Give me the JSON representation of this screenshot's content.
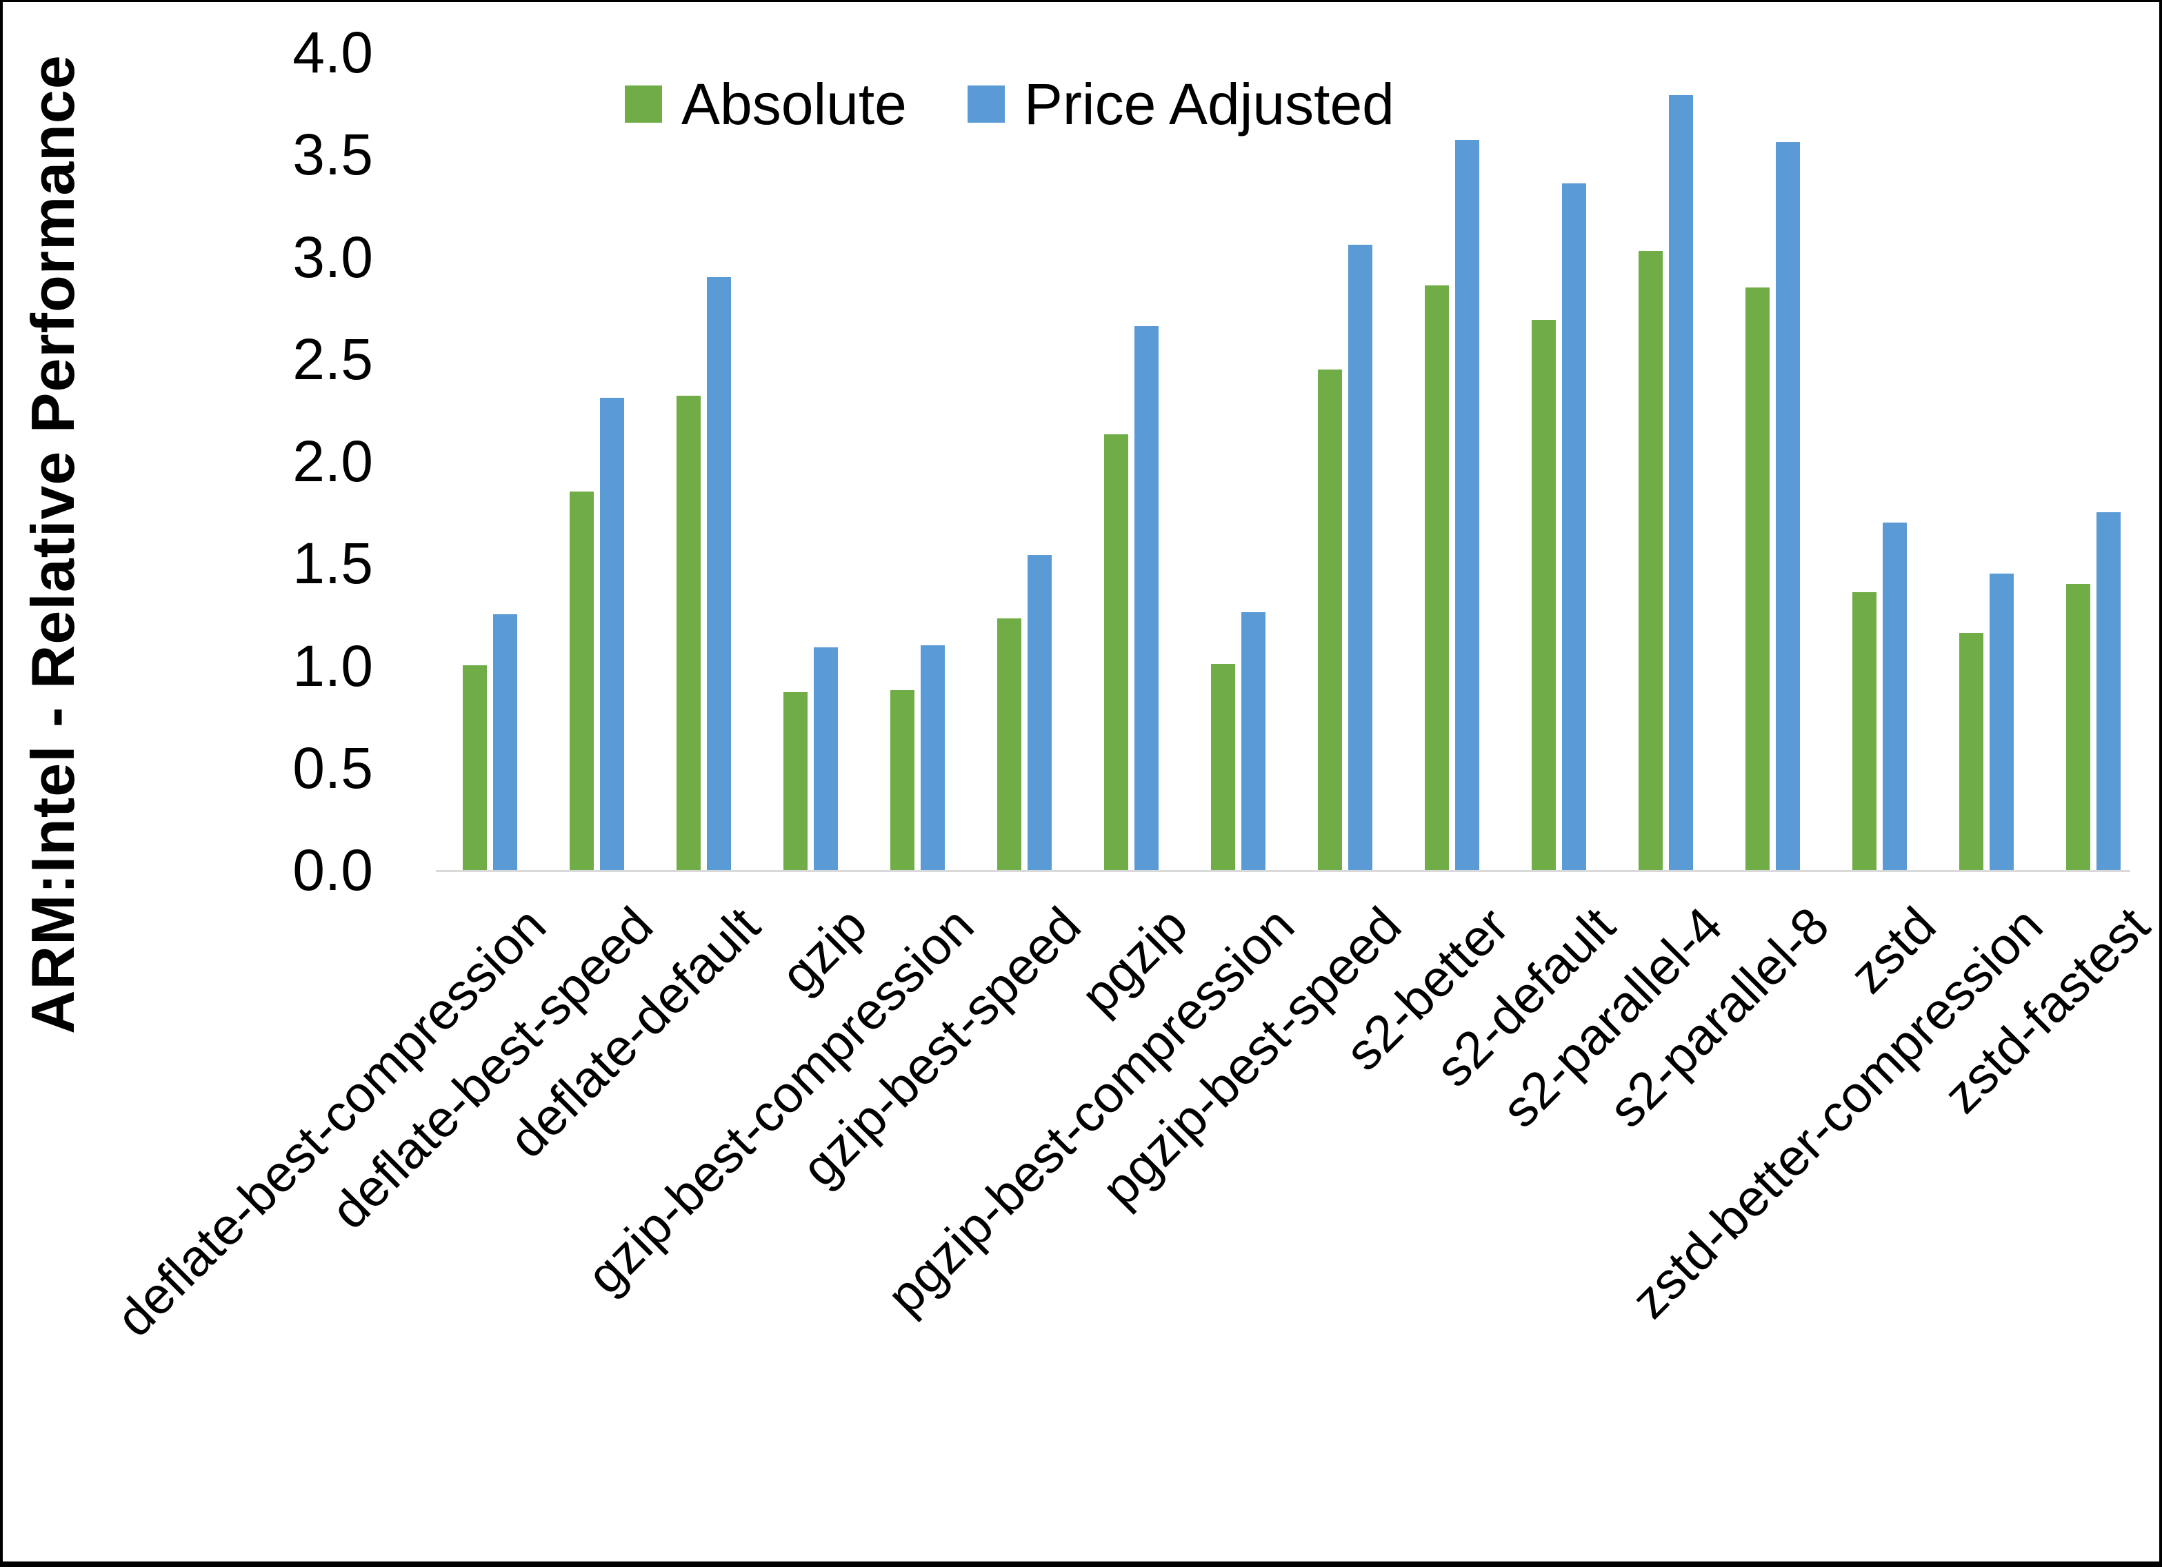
{
  "frame": {
    "background": "#ffffff",
    "border_color": "#000000"
  },
  "y_axis": {
    "min": 0.0,
    "max": 4.0,
    "tick_step": 0.5,
    "tick_labels": [
      "0.0",
      "0.5",
      "1.0",
      "1.5",
      "2.0",
      "2.5",
      "3.0",
      "3.5",
      "4.0"
    ],
    "axis_line_color": "#d9d9d9",
    "title": "ARM:Intel - Relative Performance"
  },
  "legend": {
    "position": "top-center",
    "items": [
      {
        "label": "Absolute",
        "color": "#70AD47",
        "swatch": "green-square-icon"
      },
      {
        "label": "Price Adjusted",
        "color": "#5B9BD5",
        "swatch": "blue-square-icon"
      }
    ]
  },
  "chart_data": {
    "type": "bar",
    "title": "",
    "xlabel": "",
    "ylabel": "ARM:Intel - Relative Performance",
    "ylim": [
      0.0,
      4.0
    ],
    "grid": false,
    "legend_position": "top-center",
    "bar_colors": {
      "Absolute": "#70AD47",
      "Price Adjusted": "#5B9BD5"
    },
    "categories": [
      "deflate-best-compression",
      "deflate-best-speed",
      "deflate-default",
      "gzip",
      "gzip-best-compression",
      "gzip-best-speed",
      "pgzip",
      "pgzip-best-compression",
      "pgzip-best-speed",
      "s2-better",
      "s2-default",
      "s2-parallel-4",
      "s2-parallel-8",
      "zstd",
      "zstd-better-compression",
      "zstd-fastest"
    ],
    "series": [
      {
        "name": "Absolute",
        "color": "#70AD47",
        "values": [
          1.0,
          1.85,
          2.32,
          0.87,
          0.88,
          1.23,
          2.13,
          1.01,
          2.45,
          2.86,
          2.69,
          3.03,
          2.85,
          1.36,
          1.16,
          1.4
        ]
      },
      {
        "name": "Price Adjusted",
        "color": "#5B9BD5",
        "values": [
          1.25,
          2.31,
          2.9,
          1.09,
          1.1,
          1.54,
          2.66,
          1.26,
          3.06,
          3.57,
          3.36,
          3.79,
          3.56,
          1.7,
          1.45,
          1.75
        ]
      }
    ]
  }
}
